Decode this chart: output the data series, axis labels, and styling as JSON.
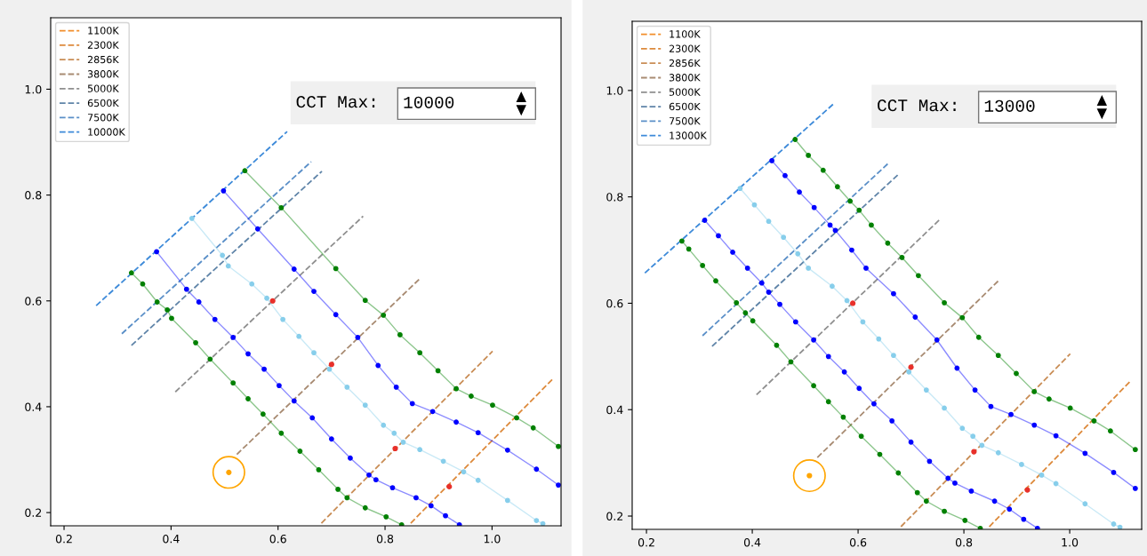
{
  "chart_data": [
    {
      "type": "line",
      "xlim": [
        0.175,
        1.129
      ],
      "ylim": [
        0.175,
        1.135
      ],
      "xticks": [
        0.2,
        0.4,
        0.6,
        0.8,
        {
          "value": 1,
          "label": "1.0"
        }
      ],
      "yticks": [
        0.2,
        0.4,
        0.6,
        0.8,
        {
          "value": 1,
          "label": "1.0"
        }
      ],
      "legend": "top left",
      "grid": false,
      "annotations": [
        "CCT Max:",
        "10000"
      ],
      "series": [
        {
          "name": "1100K",
          "color": "#f28e2b",
          "line_style": "dashed",
          "marker": "none"
        },
        {
          "name": "2300K",
          "color": "#dd8a3c",
          "line_style": "dashed",
          "marker": "none",
          "x": [
            0.848,
            1.114
          ],
          "values": [
            0.18,
            0.453
          ]
        },
        {
          "name": "2856K",
          "color": "#c98d55",
          "line_style": "dashed",
          "marker": "none",
          "x": [
            0.681,
            1.001
          ],
          "values": [
            0.18,
            0.505
          ]
        },
        {
          "name": "3800K",
          "color": "#a88b72",
          "line_style": "dashed",
          "marker": "none",
          "x": [
            0.523,
            0.865
          ],
          "values": [
            0.31,
            0.642
          ]
        },
        {
          "name": "5000K",
          "color": "#8f8f8f",
          "line_style": "dashed",
          "marker": "none",
          "x": [
            0.408,
            0.759
          ],
          "values": [
            0.428,
            0.76
          ]
        },
        {
          "name": "6500K",
          "color": "#5f84a8",
          "line_style": "dashed",
          "marker": "none",
          "x": [
            0.326,
            0.682
          ],
          "values": [
            0.516,
            0.845
          ]
        },
        {
          "name": "7500K",
          "color": "#5a8fc8",
          "line_style": "dashed",
          "marker": "none",
          "x": [
            0.308,
            0.662
          ],
          "values": [
            0.538,
            0.863
          ]
        },
        {
          "name": "10000K",
          "color": "#3d8ad9",
          "line_style": "dashed",
          "marker": "none",
          "x": [
            0.26,
            0.617
          ],
          "values": [
            0.591,
            0.92
          ]
        },
        {
          "color": "#008000",
          "line_style": "solid",
          "marker": "circle",
          "x": [
            0.326,
            0.347,
            0.374,
            0.393,
            0.401,
            0.446,
            0.473,
            0.516,
            0.544,
            0.572,
            0.606,
            0.641,
            0.676,
            0.712,
            0.729,
            0.763,
            0.802,
            0.831
          ],
          "values": [
            0.653,
            0.632,
            0.598,
            0.583,
            0.567,
            0.521,
            0.49,
            0.445,
            0.415,
            0.386,
            0.35,
            0.316,
            0.281,
            0.244,
            0.228,
            0.209,
            0.192,
            0.177
          ]
        },
        {
          "color": "#0000ff",
          "line_style": "solid",
          "marker": "circle",
          "x": [
            0.373,
            0.429,
            0.452,
            0.482,
            0.516,
            0.544,
            0.574,
            0.602,
            0.63,
            0.664,
            0.7,
            0.735,
            0.77,
            0.783,
            0.814,
            0.858,
            0.886,
            0.913,
            0.939
          ],
          "values": [
            0.693,
            0.622,
            0.598,
            0.565,
            0.531,
            0.5,
            0.471,
            0.44,
            0.411,
            0.379,
            0.339,
            0.303,
            0.271,
            0.262,
            0.247,
            0.228,
            0.213,
            0.194,
            0.177
          ]
        },
        {
          "color": "#87ceeb",
          "line_style": "solid",
          "marker": "circle",
          "x": [
            0.439,
            0.496,
            0.507,
            0.551,
            0.579,
            0.609,
            0.639,
            0.667,
            0.696,
            0.729,
            0.763,
            0.797,
            0.817,
            0.834,
            0.865,
            0.909,
            0.947,
            0.974,
            1.029,
            1.083,
            1.095
          ],
          "values": [
            0.756,
            0.686,
            0.666,
            0.632,
            0.605,
            0.565,
            0.533,
            0.502,
            0.471,
            0.437,
            0.403,
            0.365,
            0.35,
            0.333,
            0.319,
            0.297,
            0.277,
            0.261,
            0.223,
            0.185,
            0.179
          ]
        },
        {
          "color": "#0000ff",
          "line_style": "solid",
          "marker": "circle",
          "x": [
            0.498,
            0.562,
            0.63,
            0.667,
            0.708,
            0.749,
            0.787,
            0.821,
            0.851,
            0.889,
            0.933,
            0.974,
            1.029,
            1.083,
            1.124
          ],
          "values": [
            0.808,
            0.736,
            0.66,
            0.618,
            0.574,
            0.531,
            0.478,
            0.437,
            0.406,
            0.391,
            0.371,
            0.351,
            0.318,
            0.282,
            0.252
          ]
        },
        {
          "color": "#008000",
          "line_style": "solid",
          "marker": "circle",
          "x": [
            0.538,
            0.606,
            0.708,
            0.763,
            0.797,
            0.828,
            0.865,
            0.899,
            0.933,
            0.961,
            1.001,
            1.046,
            1.077,
            1.124
          ],
          "values": [
            0.846,
            0.776,
            0.661,
            0.601,
            0.573,
            0.536,
            0.502,
            0.468,
            0.434,
            0.42,
            0.403,
            0.379,
            0.36,
            0.325
          ]
        },
        {
          "type": "scatter",
          "color": "#e8302a",
          "marker": "circle",
          "x": [
            0.59,
            0.7,
            0.819,
            0.92
          ],
          "values": [
            0.6,
            0.48,
            0.321,
            0.249
          ]
        },
        {
          "type": "bubble",
          "color": "#ffa500",
          "marker": "circle",
          "x": [
            0.508
          ],
          "values": [
            0.276
          ],
          "sizes": [
            1
          ]
        }
      ]
    },
    {
      "type": "line",
      "xlim": [
        0.173,
        1.136
      ],
      "ylim": [
        0.175,
        1.13
      ],
      "xticks": [
        0.2,
        0.4,
        0.6,
        0.8,
        {
          "value": 1,
          "label": "1.0"
        }
      ],
      "yticks": [
        0.2,
        0.4,
        0.6,
        0.8,
        {
          "value": 1,
          "label": "1.0"
        }
      ],
      "legend": "top left",
      "grid": false,
      "annotations": [
        "CCT Max:",
        "13000"
      ],
      "series": [
        {
          "name": "1100K",
          "color": "#f28e2b",
          "line_style": "dashed",
          "marker": "none"
        },
        {
          "name": "2300K",
          "color": "#dd8a3c",
          "line_style": "dashed",
          "marker": "none",
          "x": [
            0.848,
            1.114
          ],
          "values": [
            0.18,
            0.453
          ]
        },
        {
          "name": "2856K",
          "color": "#c98d55",
          "line_style": "dashed",
          "marker": "none",
          "x": [
            0.681,
            1.001
          ],
          "values": [
            0.18,
            0.505
          ]
        },
        {
          "name": "3800K",
          "color": "#a88b72",
          "line_style": "dashed",
          "marker": "none",
          "x": [
            0.523,
            0.865
          ],
          "values": [
            0.31,
            0.642
          ]
        },
        {
          "name": "5000K",
          "color": "#8f8f8f",
          "line_style": "dashed",
          "marker": "none",
          "x": [
            0.408,
            0.755
          ],
          "values": [
            0.428,
            0.758
          ]
        },
        {
          "name": "6500K",
          "color": "#5f84a8",
          "line_style": "dashed",
          "marker": "none",
          "x": [
            0.324,
            0.677
          ],
          "values": [
            0.519,
            0.843
          ]
        },
        {
          "name": "7500K",
          "color": "#5a8fc8",
          "line_style": "dashed",
          "marker": "none",
          "x": [
            0.306,
            0.657
          ],
          "values": [
            0.539,
            0.863
          ]
        },
        {
          "name": "13000K",
          "color": "#3d8ad9",
          "line_style": "dashed",
          "marker": "none",
          "x": [
            0.197,
            0.555
          ],
          "values": [
            0.657,
            0.976
          ]
        },
        {
          "color": "#008000",
          "line_style": "solid",
          "marker": "circle",
          "x": [
            0.267,
            0.28,
            0.306,
            0.331,
            0.37,
            0.387,
            0.401,
            0.446,
            0.473,
            0.516,
            0.544,
            0.572,
            0.606,
            0.641,
            0.676,
            0.712,
            0.729,
            0.763,
            0.802,
            0.831
          ],
          "values": [
            0.717,
            0.702,
            0.671,
            0.642,
            0.601,
            0.582,
            0.567,
            0.521,
            0.49,
            0.445,
            0.415,
            0.386,
            0.35,
            0.316,
            0.281,
            0.244,
            0.228,
            0.209,
            0.192,
            0.177
          ]
        },
        {
          "color": "#0000ff",
          "line_style": "solid",
          "marker": "circle",
          "x": [
            0.31,
            0.336,
            0.363,
            0.391,
            0.418,
            0.431,
            0.452,
            0.482,
            0.516,
            0.544,
            0.574,
            0.602,
            0.63,
            0.664,
            0.7,
            0.735,
            0.77,
            0.783,
            0.814,
            0.858,
            0.886,
            0.913,
            0.939
          ],
          "values": [
            0.756,
            0.727,
            0.696,
            0.666,
            0.638,
            0.621,
            0.598,
            0.565,
            0.531,
            0.5,
            0.471,
            0.44,
            0.411,
            0.379,
            0.339,
            0.303,
            0.271,
            0.262,
            0.247,
            0.228,
            0.213,
            0.194,
            0.177
          ]
        },
        {
          "color": "#87ceeb",
          "line_style": "solid",
          "marker": "circle",
          "x": [
            0.377,
            0.404,
            0.431,
            0.459,
            0.486,
            0.506,
            0.551,
            0.579,
            0.609,
            0.639,
            0.667,
            0.696,
            0.729,
            0.763,
            0.797,
            0.817,
            0.834,
            0.865,
            0.909,
            0.947,
            0.974,
            1.029,
            1.083,
            1.095
          ],
          "values": [
            0.816,
            0.785,
            0.754,
            0.724,
            0.693,
            0.666,
            0.632,
            0.605,
            0.565,
            0.533,
            0.502,
            0.471,
            0.437,
            0.403,
            0.365,
            0.35,
            0.333,
            0.319,
            0.297,
            0.277,
            0.261,
            0.223,
            0.185,
            0.179
          ]
        },
        {
          "color": "#0000ff",
          "line_style": "solid",
          "marker": "circle",
          "x": [
            0.437,
            0.462,
            0.489,
            0.517,
            0.547,
            0.557,
            0.588,
            0.615,
            0.667,
            0.708,
            0.749,
            0.787,
            0.821,
            0.851,
            0.889,
            0.933,
            0.974,
            1.029,
            1.083,
            1.124
          ],
          "values": [
            0.868,
            0.84,
            0.809,
            0.78,
            0.747,
            0.737,
            0.7,
            0.666,
            0.618,
            0.574,
            0.531,
            0.478,
            0.437,
            0.406,
            0.391,
            0.371,
            0.351,
            0.318,
            0.282,
            0.252
          ]
        },
        {
          "color": "#008000",
          "line_style": "solid",
          "marker": "circle",
          "x": [
            0.481,
            0.506,
            0.534,
            0.561,
            0.585,
            0.602,
            0.625,
            0.656,
            0.683,
            0.714,
            0.763,
            0.797,
            0.828,
            0.865,
            0.899,
            0.933,
            0.961,
            1.001,
            1.046,
            1.077,
            1.124
          ],
          "values": [
            0.908,
            0.878,
            0.85,
            0.819,
            0.792,
            0.775,
            0.747,
            0.713,
            0.686,
            0.652,
            0.601,
            0.573,
            0.536,
            0.502,
            0.468,
            0.434,
            0.42,
            0.403,
            0.379,
            0.36,
            0.325
          ]
        },
        {
          "type": "scatter",
          "color": "#e8302a",
          "marker": "circle",
          "x": [
            0.59,
            0.7,
            0.819,
            0.92
          ],
          "values": [
            0.6,
            0.48,
            0.321,
            0.249
          ]
        },
        {
          "type": "bubble",
          "color": "#ffa500",
          "marker": "circle",
          "x": [
            0.508
          ],
          "values": [
            0.276
          ],
          "sizes": [
            1
          ]
        }
      ]
    }
  ]
}
